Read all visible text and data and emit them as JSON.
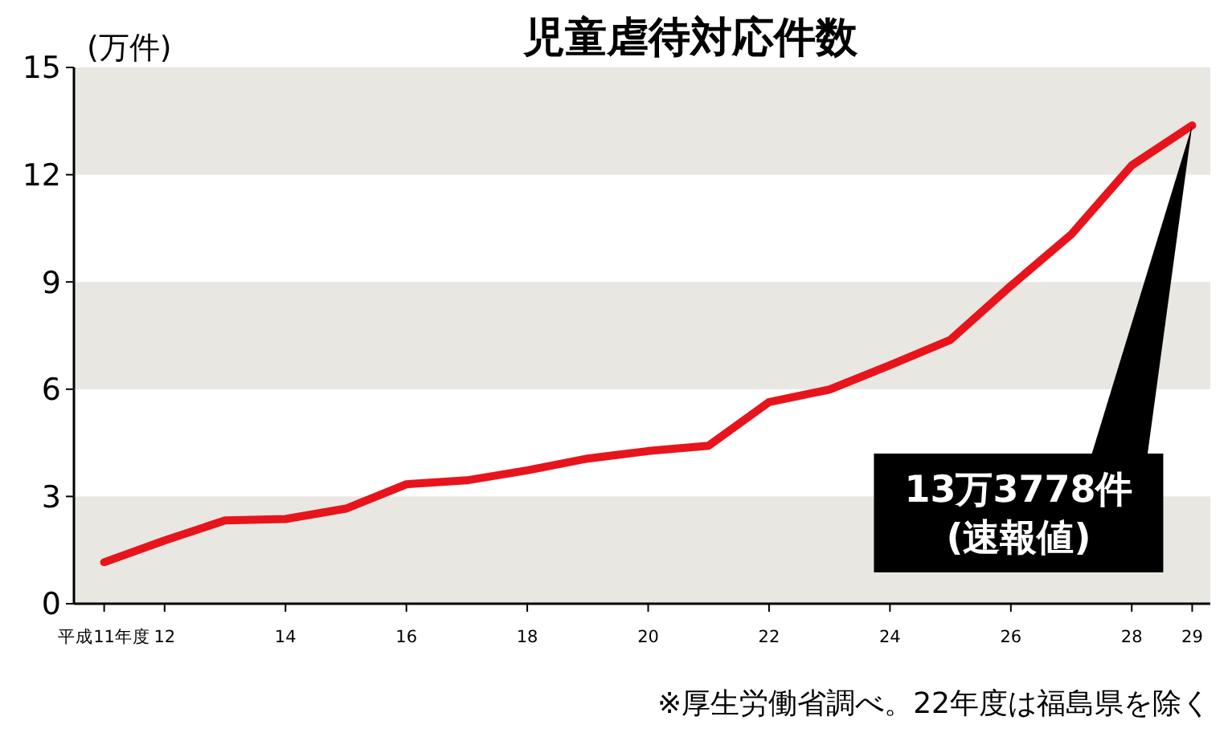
{
  "chart_data": {
    "type": "line",
    "title": "児童虐待対応件数",
    "ylabel": "(万件)",
    "x": [
      11,
      12,
      13,
      14,
      15,
      16,
      17,
      18,
      19,
      20,
      21,
      22,
      23,
      24,
      25,
      26,
      27,
      28,
      29
    ],
    "series": [
      {
        "color": "#e8141c",
        "values": [
          1.16,
          1.77,
          2.33,
          2.37,
          2.66,
          3.34,
          3.45,
          3.73,
          4.06,
          4.27,
          4.42,
          5.64,
          5.99,
          6.67,
          7.38,
          8.89,
          10.33,
          12.26,
          13.38
        ]
      }
    ],
    "xlim": [
      10.5,
      29.3
    ],
    "xticks": [
      {
        "value": 11,
        "label": "平成11年度"
      },
      12,
      14,
      16,
      18,
      20,
      22,
      24,
      26,
      28,
      29
    ],
    "ylim": [
      0,
      15
    ],
    "yticks": [
      0,
      3,
      6,
      9,
      12,
      15
    ],
    "bands": [
      {
        "axis": "y",
        "from": 12,
        "to": 15,
        "color": "#e9e7e2"
      },
      {
        "axis": "y",
        "from": 6,
        "to": 9,
        "color": "#e9e7e2"
      },
      {
        "axis": "y",
        "from": 0,
        "to": 3,
        "color": "#e9e7e2"
      }
    ],
    "marker": "none",
    "line_style": "solid",
    "annotations": [
      {
        "text": "13万3778件\n(速報値)",
        "x": 29,
        "y": 13.3778
      },
      "※厚生労働省調べ。22年度は福島県を除く"
    ]
  }
}
